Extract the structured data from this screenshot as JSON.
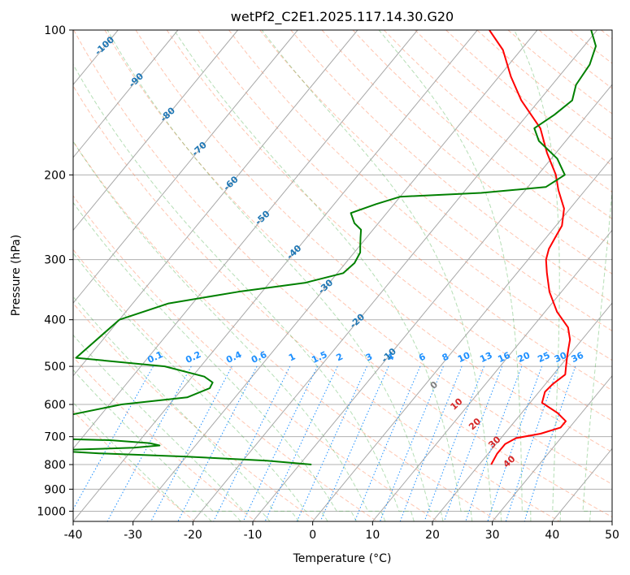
{
  "chart_data": {
    "type": "skew-t",
    "title": "wetPf2_C2E1.2025.117.14.30.G20",
    "xlabel": "Temperature (°C)",
    "ylabel": "Pressure (hPa)",
    "xlim": [
      -40,
      50
    ],
    "ylim": [
      1050,
      100
    ],
    "y_scale": "log",
    "grid": true,
    "x_ticks": [
      "-40",
      "-30",
      "-20",
      "-10",
      "0",
      "10",
      "20",
      "30",
      "40",
      "50"
    ],
    "y_ticks": [
      "100",
      "200",
      "300",
      "400",
      "500",
      "600",
      "700",
      "800",
      "900",
      "1000"
    ],
    "colors": {
      "temperature": "#ff0000",
      "dewpoint": "#008000",
      "mixing_ratio": "#1e90ff",
      "isotherm_label": "#1f77b4",
      "dry_adiabat": "#ff7f50",
      "moist_adiabat": "#2ca02c",
      "wetbulb_label": "#d62728"
    },
    "isotherm_labels": [
      "-100",
      "-90",
      "-80",
      "-70",
      "-60",
      "-50",
      "-40",
      "-30",
      "-20",
      "-10"
    ],
    "mixing_ratio_labels": [
      "0.1",
      "0.2",
      "0.4",
      "0.6",
      "1",
      "1.5",
      "2",
      "3",
      "4",
      "6",
      "8",
      "10",
      "13",
      "16",
      "20",
      "25",
      "30",
      "36"
    ],
    "mixing_ratio_values": [
      0.1,
      0.2,
      0.4,
      0.6,
      1,
      1.5,
      2,
      3,
      4,
      6,
      8,
      10,
      13,
      16,
      20,
      25,
      30,
      36
    ],
    "wetbulb_labels": [
      "0",
      "10",
      "20",
      "30",
      "40"
    ],
    "series": [
      {
        "name": "",
        "role": "temperature",
        "points": [
          [
            22.0,
            800
          ],
          [
            21.5,
            760
          ],
          [
            21.5,
            725
          ],
          [
            22.5,
            705
          ],
          [
            26.0,
            690
          ],
          [
            28.5,
            670
          ],
          [
            28.5,
            650
          ],
          [
            26.0,
            625
          ],
          [
            22.0,
            595
          ],
          [
            21.0,
            565
          ],
          [
            21.2,
            545
          ],
          [
            22.0,
            520
          ],
          [
            21.0,
            500
          ],
          [
            20.0,
            480
          ],
          [
            19.0,
            460
          ],
          [
            18.0,
            440
          ],
          [
            16.0,
            415
          ],
          [
            12.0,
            385
          ],
          [
            8.0,
            350
          ],
          [
            5.0,
            320
          ],
          [
            3.0,
            300
          ],
          [
            2.0,
            285
          ],
          [
            1.5,
            270
          ],
          [
            1.0,
            255
          ],
          [
            -1.0,
            235
          ],
          [
            -4.5,
            215
          ],
          [
            -7.0,
            200
          ],
          [
            -11.5,
            180
          ],
          [
            -16.0,
            160
          ],
          [
            -23.0,
            140
          ],
          [
            -28.0,
            125
          ],
          [
            -33.0,
            110
          ],
          [
            -38.0,
            100
          ]
        ]
      },
      {
        "name": "",
        "role": "dewpoint",
        "points": [
          [
            -8.0,
            800
          ],
          [
            -16.0,
            785
          ],
          [
            -30.0,
            770
          ],
          [
            -45.0,
            758
          ],
          [
            -52.0,
            750
          ],
          [
            -50.0,
            745
          ],
          [
            -40.0,
            738
          ],
          [
            -36.0,
            730
          ],
          [
            -38.0,
            722
          ],
          [
            -45.0,
            712
          ],
          [
            -70.0,
            700
          ],
          [
            -48.0,
            600
          ],
          [
            -38.0,
            580
          ],
          [
            -35.5,
            555
          ],
          [
            -35.8,
            540
          ],
          [
            -38.0,
            525
          ],
          [
            -46.0,
            500
          ],
          [
            -62.0,
            480
          ],
          [
            -60.0,
            400
          ],
          [
            -54.0,
            370
          ],
          [
            -44.0,
            350
          ],
          [
            -34.0,
            335
          ],
          [
            -29.0,
            320
          ],
          [
            -28.5,
            305
          ],
          [
            -29.0,
            290
          ],
          [
            -30.0,
            280
          ],
          [
            -31.0,
            270
          ],
          [
            -32.0,
            260
          ],
          [
            -34.0,
            252
          ],
          [
            -36.0,
            240
          ],
          [
            -33.0,
            230
          ],
          [
            -30.0,
            222
          ],
          [
            -17.0,
            218
          ],
          [
            -7.0,
            212
          ],
          [
            -5.5,
            200
          ],
          [
            -9.0,
            185
          ],
          [
            -14.5,
            170
          ],
          [
            -17.0,
            160
          ],
          [
            -15.5,
            150
          ],
          [
            -14.5,
            140
          ],
          [
            -16.0,
            130
          ],
          [
            -16.5,
            118
          ],
          [
            -18.0,
            108
          ],
          [
            -21.0,
            100
          ]
        ]
      }
    ]
  }
}
